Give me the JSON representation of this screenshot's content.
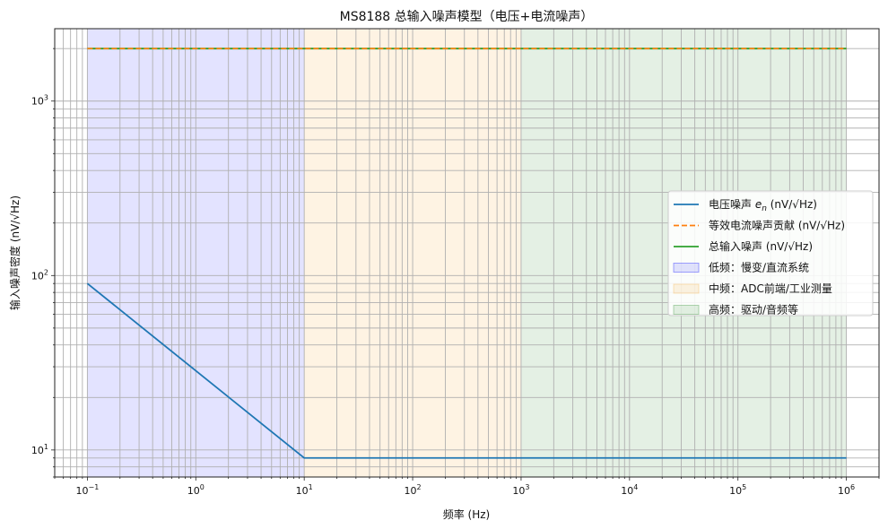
{
  "chart_data": {
    "type": "line",
    "title": "MS8188 总输入噪声模型（电压+电流噪声）",
    "xlabel": "频率 (Hz)",
    "ylabel": "输入噪声密度 (nV/√Hz)",
    "xscale": "log",
    "yscale": "log",
    "xlim": [
      0.05,
      2000000
    ],
    "ylim": [
      7,
      2600
    ],
    "grid": true,
    "legend_position": "center-right",
    "x_ticks": [
      0.1,
      1,
      10,
      100,
      1000,
      10000,
      100000,
      1000000
    ],
    "x_tick_labels": [
      {
        "base": "10",
        "exp": "−1"
      },
      {
        "base": "10",
        "exp": "0"
      },
      {
        "base": "10",
        "exp": "1"
      },
      {
        "base": "10",
        "exp": "2"
      },
      {
        "base": "10",
        "exp": "3"
      },
      {
        "base": "10",
        "exp": "4"
      },
      {
        "base": "10",
        "exp": "5"
      },
      {
        "base": "10",
        "exp": "6"
      }
    ],
    "y_ticks": [
      10,
      100,
      1000
    ],
    "y_tick_labels": [
      {
        "base": "10",
        "exp": "1"
      },
      {
        "base": "10",
        "exp": "2"
      },
      {
        "base": "10",
        "exp": "3"
      }
    ],
    "series": [
      {
        "name": "电压噪声 e_n (nV/√Hz)",
        "legend_main": "电压噪声 ",
        "legend_italic": "e",
        "legend_sub": "n",
        "legend_tail": " (nV/√Hz)",
        "color": "#1f77b4",
        "style": "solid",
        "x": [
          0.1,
          10,
          1000000
        ],
        "y": [
          90,
          9,
          9
        ]
      },
      {
        "name": "等效电流噪声贡献 (nV/√Hz)",
        "color": "#ff7f0e",
        "style": "dashed",
        "x": [
          0.1,
          1000000
        ],
        "y": [
          2000,
          2000
        ]
      },
      {
        "name": "总输入噪声 (nV/√Hz)",
        "color": "#2ca02c",
        "style": "solid",
        "x": [
          0.1,
          1000000
        ],
        "y": [
          2000,
          2000
        ]
      }
    ],
    "bands": [
      {
        "name": "低频：慢变/直流系统",
        "from": 0.1,
        "to": 10,
        "color": "#0000ff",
        "opacity": 0.11
      },
      {
        "name": "中频：ADC前端/工业测量",
        "from": 10,
        "to": 1000,
        "color": "#f5b041",
        "opacity": 0.15
      },
      {
        "name": "高频：驱动/音频等",
        "from": 1000,
        "to": 1000000,
        "color": "#2e8b2e",
        "opacity": 0.13
      }
    ]
  }
}
